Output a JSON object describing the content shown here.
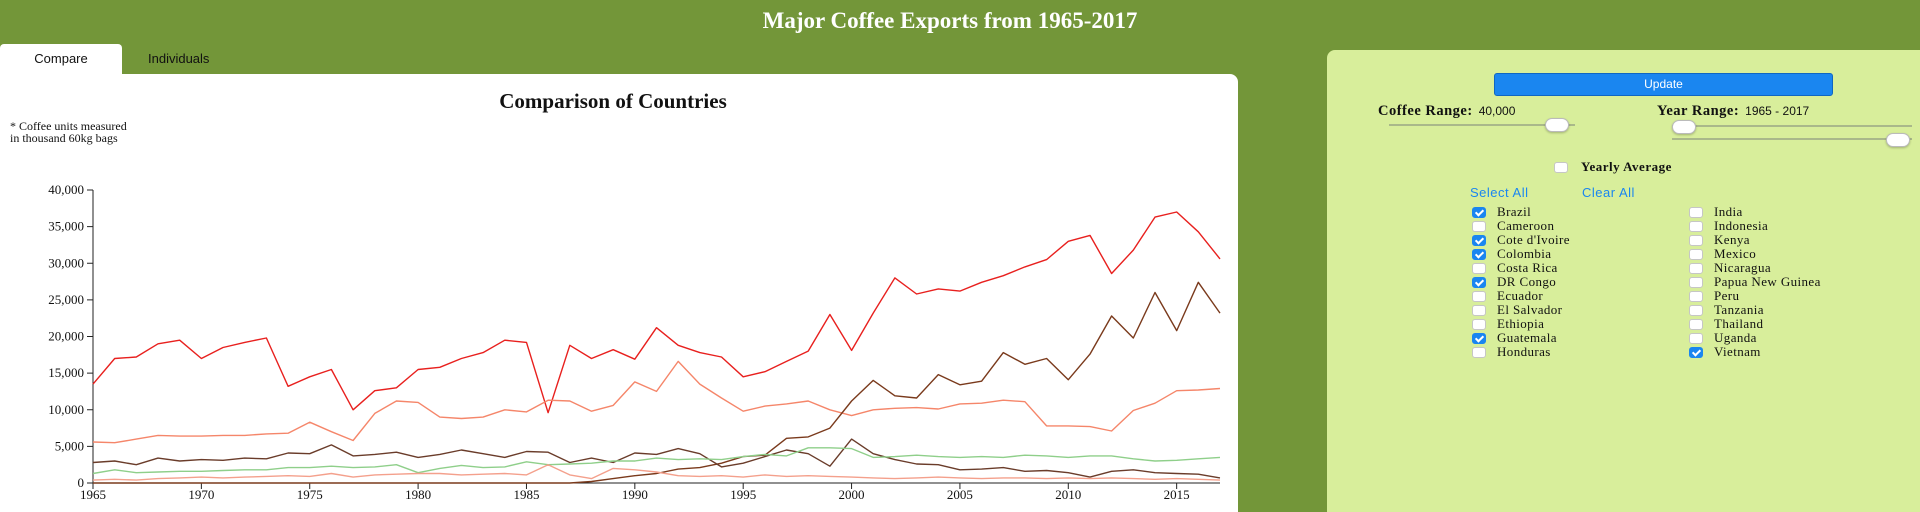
{
  "page": {
    "title": "Major Coffee Exports from 1965-2017"
  },
  "tabs": [
    {
      "label": "Compare",
      "active": true
    },
    {
      "label": "Individuals",
      "active": false
    }
  ],
  "chart": {
    "title": "Comparison of Countries",
    "note_line1": "* Coffee units measured",
    "note_line2": "in thousand 60kg bags"
  },
  "controls": {
    "update_label": "Update",
    "coffee_range_label": "Coffee Range:",
    "coffee_range_value": "40,000",
    "coffee_range_max": 40000,
    "year_range_label": "Year Range:",
    "year_range_value": "1965 - 2017",
    "year_start": 1965,
    "year_end": 2017,
    "yearly_average_label": "Yearly Average",
    "yearly_average_checked": false,
    "select_all_label": "Select All",
    "clear_all_label": "Clear All"
  },
  "countries": [
    {
      "name": "Brazil",
      "checked": true
    },
    {
      "name": "Cameroon",
      "checked": false
    },
    {
      "name": "Cote d'Ivoire",
      "checked": true
    },
    {
      "name": "Colombia",
      "checked": true
    },
    {
      "name": "Costa Rica",
      "checked": false
    },
    {
      "name": "DR Congo",
      "checked": true
    },
    {
      "name": "Ecuador",
      "checked": false
    },
    {
      "name": "El Salvador",
      "checked": false
    },
    {
      "name": "Ethiopia",
      "checked": false
    },
    {
      "name": "Guatemala",
      "checked": true
    },
    {
      "name": "Honduras",
      "checked": false
    },
    {
      "name": "India",
      "checked": false
    },
    {
      "name": "Indonesia",
      "checked": false
    },
    {
      "name": "Kenya",
      "checked": false
    },
    {
      "name": "Mexico",
      "checked": false
    },
    {
      "name": "Nicaragua",
      "checked": false
    },
    {
      "name": "Papua New Guinea",
      "checked": false
    },
    {
      "name": "Peru",
      "checked": false
    },
    {
      "name": "Tanzania",
      "checked": false
    },
    {
      "name": "Thailand",
      "checked": false
    },
    {
      "name": "Uganda",
      "checked": false
    },
    {
      "name": "Vietnam",
      "checked": true
    }
  ],
  "chart_data": {
    "type": "line",
    "title": "Comparison of Countries",
    "xlabel": "",
    "ylabel": "",
    "xlim": [
      1965,
      2017
    ],
    "ylim": [
      0,
      40000
    ],
    "x_ticks": [
      1965,
      1970,
      1975,
      1980,
      1985,
      1990,
      1995,
      2000,
      2005,
      2010,
      2015
    ],
    "y_ticks": [
      0,
      5000,
      10000,
      15000,
      20000,
      25000,
      30000,
      35000,
      40000
    ],
    "x": [
      1965,
      1966,
      1967,
      1968,
      1969,
      1970,
      1971,
      1972,
      1973,
      1974,
      1975,
      1976,
      1977,
      1978,
      1979,
      1980,
      1981,
      1982,
      1983,
      1984,
      1985,
      1986,
      1987,
      1988,
      1989,
      1990,
      1991,
      1992,
      1993,
      1994,
      1995,
      1996,
      1997,
      1998,
      1999,
      2000,
      2001,
      2002,
      2003,
      2004,
      2005,
      2006,
      2007,
      2008,
      2009,
      2010,
      2011,
      2012,
      2013,
      2014,
      2015,
      2016,
      2017
    ],
    "series": [
      {
        "color": "#e8201e",
        "values": [
          13500,
          17000,
          17200,
          19000,
          19500,
          17000,
          18500,
          19200,
          19800,
          13200,
          14500,
          15500,
          10000,
          12600,
          13000,
          15500,
          15800,
          17000,
          17800,
          19500,
          19200,
          9600,
          18800,
          17000,
          18200,
          16900,
          21200,
          18800,
          17800,
          17200,
          14500,
          15200,
          16600,
          18000,
          23000,
          18100,
          23200,
          28000,
          25800,
          26500,
          26200,
          27400,
          28300,
          29500,
          30500,
          33000,
          33800,
          28600,
          31800,
          36300,
          37000,
          34300,
          30600
        ]
      },
      {
        "color": "#f5866a",
        "values": [
          5600,
          5500,
          6000,
          6500,
          6400,
          6400,
          6500,
          6500,
          6700,
          6800,
          8300,
          7000,
          5800,
          9500,
          11200,
          11000,
          9000,
          8800,
          9000,
          10000,
          9700,
          11300,
          11200,
          9800,
          10600,
          13800,
          12500,
          16600,
          13500,
          11600,
          9800,
          10500,
          10800,
          11200,
          10000,
          9200,
          10000,
          10200,
          10300,
          10100,
          10800,
          10900,
          11300,
          11100,
          7800,
          7800,
          7700,
          7100,
          9900,
          10900,
          12600,
          12700,
          12900
        ]
      },
      {
        "color": "#7a3a1c",
        "values": [
          0,
          0,
          0,
          0,
          0,
          0,
          0,
          0,
          0,
          0,
          0,
          0,
          0,
          0,
          0,
          0,
          0,
          0,
          0,
          0,
          0,
          0,
          0,
          200,
          600,
          1000,
          1300,
          1900,
          2100,
          2700,
          3600,
          3800,
          6100,
          6300,
          7500,
          11200,
          14000,
          11900,
          11600,
          14800,
          13400,
          13900,
          17800,
          16200,
          17000,
          14100,
          17600,
          22800,
          19800,
          26000,
          20800,
          27400,
          23200
        ]
      },
      {
        "color": "#6a3c2a",
        "values": [
          2800,
          3000,
          2500,
          3400,
          3000,
          3200,
          3100,
          3400,
          3300,
          4100,
          4000,
          5200,
          3700,
          3900,
          4200,
          3500,
          3900,
          4500,
          4000,
          3500,
          4300,
          4200,
          2800,
          3400,
          2800,
          4100,
          3900,
          4700,
          4000,
          2200,
          2700,
          3600,
          4500,
          4000,
          2300,
          6000,
          4000,
          3200,
          2600,
          2500,
          1800,
          1900,
          2100,
          1600,
          1700,
          1400,
          800,
          1600,
          1800,
          1400,
          1300,
          1200,
          700
        ]
      },
      {
        "color": "#8fcf8a",
        "values": [
          1300,
          1800,
          1400,
          1500,
          1600,
          1600,
          1700,
          1800,
          1800,
          2100,
          2100,
          2300,
          2100,
          2200,
          2500,
          1400,
          2000,
          2400,
          2100,
          2200,
          2900,
          2500,
          2600,
          2700,
          3000,
          3000,
          3400,
          3200,
          3300,
          3200,
          3600,
          3900,
          3700,
          4800,
          4800,
          4700,
          3500,
          3600,
          3800,
          3600,
          3500,
          3600,
          3500,
          3800,
          3700,
          3500,
          3700,
          3700,
          3300,
          3000,
          3100,
          3300,
          3500
        ]
      },
      {
        "color": "#f4a08c",
        "values": [
          400,
          500,
          400,
          600,
          700,
          800,
          700,
          800,
          900,
          1000,
          900,
          1300,
          800,
          1100,
          1200,
          1300,
          1300,
          1100,
          1200,
          1300,
          1100,
          2500,
          1100,
          600,
          2000,
          1800,
          1500,
          1000,
          900,
          1000,
          800,
          1100,
          900,
          1000,
          900,
          800,
          700,
          600,
          700,
          800,
          700,
          600,
          700,
          700,
          600,
          700,
          600,
          700,
          600,
          500,
          600,
          500,
          400
        ]
      }
    ]
  }
}
